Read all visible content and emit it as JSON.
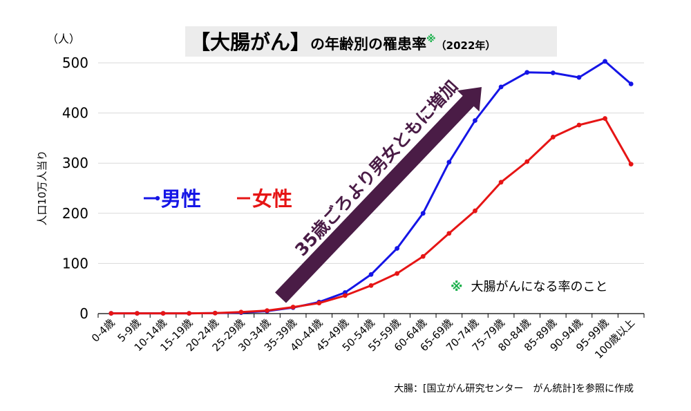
{
  "chart_data": {
    "type": "line",
    "title": {
      "prefix": "【大腸がん】",
      "middle": "の年齢別の罹患率",
      "mark": "※",
      "year": "（2022年）"
    },
    "y_unit": "（人）",
    "ylabel": "人口10万人当り",
    "ylim": [
      0,
      500
    ],
    "yticks": [
      "0",
      "100",
      "200",
      "300",
      "400",
      "500"
    ],
    "grid": true,
    "legend_position": "left-middle",
    "categories": [
      "0-4歳",
      "5-9歳",
      "10-14歳",
      "15-19歳",
      "20-24歳",
      "25-29歳",
      "30-34歳",
      "35-39歳",
      "40-44歳",
      "45-49歳",
      "50-54歳",
      "55-59歳",
      "60-64歳",
      "65-69歳",
      "70-74歳",
      "75-79歳",
      "80-84歳",
      "85-89歳",
      "90-94歳",
      "95-99歳",
      "100歳以上"
    ],
    "series": [
      {
        "name": "男性",
        "color": "#1515e6",
        "values": [
          0.5,
          0.5,
          0.5,
          0.5,
          1,
          2,
          5,
          12,
          23,
          42,
          78,
          130,
          200,
          302,
          385,
          452,
          481,
          480,
          471,
          503,
          458
        ]
      },
      {
        "name": "女性",
        "color": "#e61515",
        "values": [
          0.5,
          0.5,
          0.5,
          0.5,
          1,
          3,
          6,
          13,
          21,
          36,
          56,
          80,
          114,
          160,
          205,
          262,
          303,
          352,
          376,
          389,
          298
        ]
      }
    ],
    "annotations": {
      "arrow_text": "35歳ごろより男女ともに増加",
      "note_mark": "※",
      "note_text": "大腸がんになる率のこと",
      "source": "大腸：[国立がん研究センター　がん統計]を参照に作成"
    },
    "colors": {
      "arrow": "#4a1c46",
      "note_mark": "#18b04a",
      "title_bg": "#ececec"
    }
  }
}
